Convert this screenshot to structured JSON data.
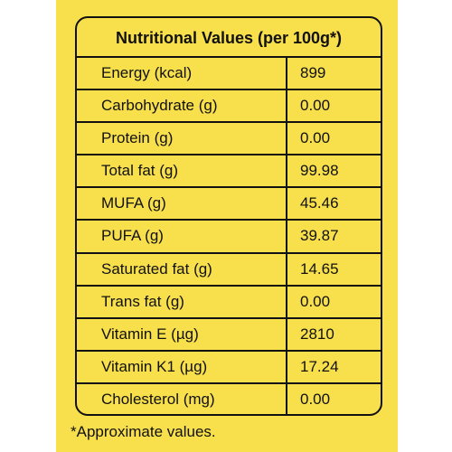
{
  "table": {
    "title": "Nutritional Values (per 100g*)",
    "rows": [
      [
        "Energy (kcal)",
        "899"
      ],
      [
        "Carbohydrate (g)",
        "0.00"
      ],
      [
        "Protein (g)",
        "0.00"
      ],
      [
        "Total fat (g)",
        "99.98"
      ],
      [
        "MUFA (g)",
        "45.46"
      ],
      [
        "PUFA (g)",
        "39.87"
      ],
      [
        "Saturated fat (g)",
        "14.65"
      ],
      [
        "Trans fat (g)",
        "0.00"
      ],
      [
        "Vitamin E (µg)",
        "2810"
      ],
      [
        "Vitamin K1 (µg)",
        "17.24"
      ],
      [
        "Cholesterol (mg)",
        "0.00"
      ]
    ]
  },
  "footnote": "*Approximate values."
}
